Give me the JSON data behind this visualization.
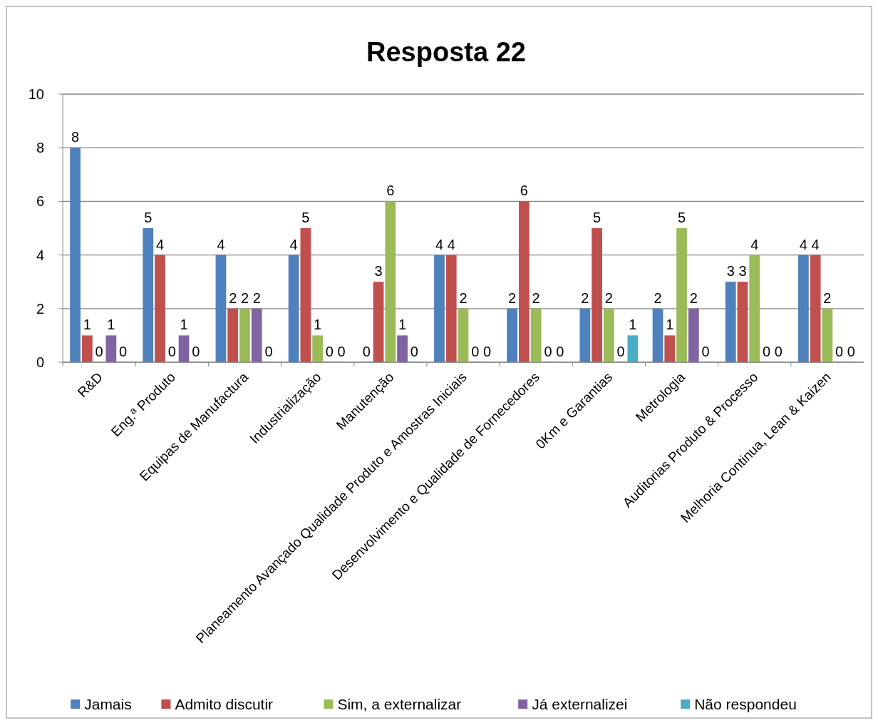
{
  "chart_data": {
    "type": "bar",
    "title": "Resposta 22",
    "categories": [
      "R&D",
      "Eng.ª Produto",
      "Equipas de Manufactura",
      "Industrialização",
      "Manutenção",
      "Planeamento Avançado Qualidade Produto e Amostras Iniciais",
      "Desenvolvimento e Qualidade de Fornecedores",
      "0Km e Garantias",
      "Metrologia",
      "Auditorias Produto & Processo",
      "Melhoria Continua, Lean & Kaizen"
    ],
    "series": [
      {
        "name": "Jamais",
        "color": "#4f81bd",
        "values": [
          8,
          5,
          4,
          4,
          0,
          4,
          2,
          2,
          2,
          3,
          4
        ]
      },
      {
        "name": "Admito discutir",
        "color": "#c0504d",
        "values": [
          1,
          4,
          2,
          5,
          3,
          4,
          6,
          5,
          1,
          3,
          4
        ]
      },
      {
        "name": "Sim, a externalizar",
        "color": "#9bbb59",
        "values": [
          0,
          0,
          2,
          1,
          6,
          2,
          2,
          2,
          5,
          4,
          2
        ]
      },
      {
        "name": "Já externalizei",
        "color": "#8064a2",
        "values": [
          1,
          1,
          2,
          0,
          1,
          0,
          0,
          0,
          2,
          0,
          0
        ]
      },
      {
        "name": "Não respondeu",
        "color": "#4bacc6",
        "values": [
          0,
          0,
          0,
          0,
          0,
          0,
          0,
          1,
          0,
          0,
          0
        ]
      }
    ],
    "ylim": [
      0,
      10
    ],
    "yticks": [
      0,
      2,
      4,
      6,
      8,
      10
    ],
    "grid": "y",
    "legend": "bottom",
    "data_labels": true
  }
}
